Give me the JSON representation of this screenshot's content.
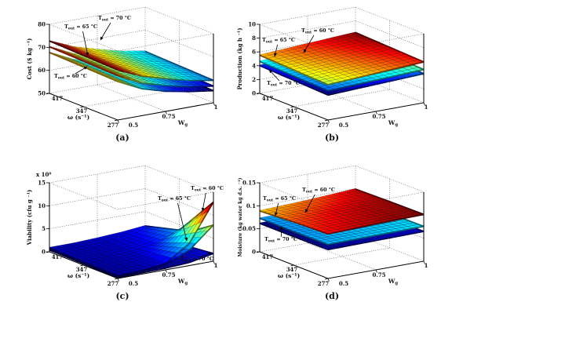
{
  "figure": {
    "captions": {
      "a": "(a)",
      "b": "(b)",
      "c": "(c)",
      "d": "(d)"
    }
  },
  "chart_data": [
    {
      "id": "a",
      "type": "surface",
      "caption": "(a)",
      "grid": true,
      "xlabel": {
        "main": "W",
        "sub": "g"
      },
      "ylabel": "ω (s⁻¹)",
      "zlabel": "Cost ($  kg ⁻¹)",
      "x_ticks": [
        "0.5",
        "0.75",
        "1"
      ],
      "y_ticks": [
        "417",
        "347",
        "277"
      ],
      "z_ticks": [
        "50",
        "60",
        "70",
        "80"
      ],
      "x_range": [
        0.5,
        1
      ],
      "y_range": [
        417,
        277
      ],
      "z_range": [
        50,
        80
      ],
      "series": [
        {
          "name": {
            "main": "T",
            "sub": "out",
            "rest": "= 60 °C"
          },
          "z": [
            [
              68,
              63,
              60,
              58,
              56.5
            ],
            [
              67.5,
              62.5,
              59.5,
              57.5,
              56
            ],
            [
              67,
              62,
              59,
              57,
              55.5
            ]
          ]
        },
        {
          "name": {
            "main": "T",
            "sub": "out",
            "rest": "= 65 °C"
          },
          "z": [
            [
              70.5,
              65.5,
              62.5,
              60,
              58.5
            ],
            [
              70,
              65,
              62,
              59.5,
              58
            ],
            [
              69.5,
              64.5,
              61.5,
              59,
              57.5
            ]
          ]
        },
        {
          "name": {
            "main": "T",
            "sub": "out",
            "rest": "= 70 °C"
          },
          "z": [
            [
              73,
              68.5,
              65.5,
              62.8,
              61
            ],
            [
              72.5,
              68,
              65,
              62.3,
              60.5
            ],
            [
              72,
              67.5,
              64.5,
              61.8,
              60
            ]
          ]
        }
      ],
      "annotations": [
        {
          "main": "T",
          "sub": "out",
          "rest": "= 65 °C"
        },
        {
          "main": "T",
          "sub": "out",
          "rest": "= 70 °C"
        },
        {
          "main": "T",
          "sub": "out",
          "rest": "= 60 °C"
        }
      ]
    },
    {
      "id": "b",
      "type": "surface",
      "caption": "(b)",
      "grid": true,
      "xlabel": {
        "main": "W",
        "sub": "g"
      },
      "ylabel": "ω (s⁻¹)",
      "zlabel": "Production (kg h ⁻¹)",
      "x_ticks": [
        "0.5",
        "0.75",
        "1"
      ],
      "y_ticks": [
        "417",
        "347",
        "277"
      ],
      "z_ticks": [
        "0",
        "2",
        "4",
        "6",
        "8",
        "10"
      ],
      "x_range": [
        0.5,
        1
      ],
      "y_range": [
        417,
        277
      ],
      "z_range": [
        0,
        10
      ],
      "series": [
        {
          "name": {
            "main": "T",
            "sub": "out",
            "rest": "= 70 °C"
          },
          "z": [
            [
              4.1,
              4.4,
              4.7
            ],
            [
              3.9,
              4.2,
              4.5
            ],
            [
              3.7,
              4.0,
              4.3
            ]
          ]
        },
        {
          "name": {
            "main": "T",
            "sub": "out",
            "rest": "= 65 °C"
          },
          "z": [
            [
              4.7,
              5.0,
              5.3
            ],
            [
              4.5,
              4.8,
              5.1
            ],
            [
              4.3,
              4.6,
              4.9
            ]
          ]
        },
        {
          "name": {
            "main": "T",
            "sub": "out",
            "rest": "= 60 °C"
          },
          "z": [
            [
              5.6,
              6.0,
              6.4
            ],
            [
              5.4,
              5.8,
              6.2
            ],
            [
              5.2,
              5.6,
              6.0
            ]
          ]
        }
      ],
      "annotations": [
        {
          "main": "T",
          "sub": "out",
          "rest": "= 60 °C"
        },
        {
          "main": "T",
          "sub": "out",
          "rest": "= 65 °C"
        },
        {
          "main": "T",
          "sub": "out",
          "rest": "= 70 °C"
        }
      ]
    },
    {
      "id": "c",
      "type": "surface",
      "caption": "(c)",
      "grid": true,
      "xlabel": {
        "main": "W",
        "sub": "g"
      },
      "ylabel": "ω (s⁻¹)",
      "zlabel": "Viability (cfu g ⁻¹)",
      "zexp": "x 10⁸",
      "x_ticks": [
        "0.5",
        "0.75",
        "1"
      ],
      "y_ticks": [
        "417",
        "347",
        "277"
      ],
      "z_ticks": [
        "0",
        "5",
        "10",
        "15"
      ],
      "x_range": [
        0.5,
        1
      ],
      "y_range": [
        417,
        277
      ],
      "z_range": [
        0,
        15
      ],
      "series": [
        {
          "name": {
            "main": "T",
            "sub": "out",
            "rest": "= 70 °C"
          },
          "z": [
            [
              0.5,
              0.5,
              0.6,
              0.7,
              0.8
            ],
            [
              0.4,
              0.4,
              0.5,
              0.7,
              1.0
            ],
            [
              0.3,
              0.4,
              0.5,
              0.8,
              1.8
            ]
          ]
        },
        {
          "name": {
            "main": "T",
            "sub": "out",
            "rest": "= 65 °C"
          },
          "z": [
            [
              0.8,
              0.8,
              1.0,
              1.2,
              1.5
            ],
            [
              0.6,
              0.7,
              0.9,
              1.5,
              3.0
            ],
            [
              0.5,
              0.7,
              1.2,
              3.5,
              8.0
            ]
          ]
        },
        {
          "name": {
            "main": "T",
            "sub": "out",
            "rest": "= 60 °C"
          },
          "z": [
            [
              1.0,
              1.0,
              1.2,
              1.5,
              2.0
            ],
            [
              0.8,
              0.9,
              1.2,
              2.0,
              4.0
            ],
            [
              0.7,
              0.9,
              1.5,
              5.0,
              13.0
            ]
          ]
        }
      ],
      "annotations": [
        {
          "main": "T",
          "sub": "out",
          "rest": "= 60 °C"
        },
        {
          "main": "T",
          "sub": "out",
          "rest": "= 65 °C"
        },
        {
          "main": "T",
          "sub": "out",
          "rest": "= 70 °C"
        }
      ]
    },
    {
      "id": "d",
      "type": "surface",
      "caption": "(d)",
      "grid": true,
      "xlabel": {
        "main": "W",
        "sub": "g"
      },
      "ylabel": "ω (s⁻¹)",
      "zlabel": "Moisture (kg water kg d.s. ⁻¹)",
      "x_ticks": [
        "0.5",
        "0.75",
        "1"
      ],
      "y_ticks": [
        "417",
        "347",
        "277"
      ],
      "z_ticks": [
        "0",
        "0.05",
        "0.1",
        "0.15"
      ],
      "x_range": [
        0.5,
        1
      ],
      "y_range": [
        417,
        277
      ],
      "z_range": [
        0,
        0.15
      ],
      "series": [
        {
          "name": {
            "main": "T",
            "sub": "out",
            "rest": "= 70 °C"
          },
          "z": [
            [
              0.063,
              0.064,
              0.065
            ],
            [
              0.063,
              0.064,
              0.065
            ],
            [
              0.064,
              0.065,
              0.066
            ]
          ]
        },
        {
          "name": {
            "main": "T",
            "sub": "out",
            "rest": "= 65 °C"
          },
          "z": [
            [
              0.074,
              0.075,
              0.076
            ],
            [
              0.074,
              0.075,
              0.076
            ],
            [
              0.075,
              0.076,
              0.077
            ]
          ]
        },
        {
          "name": {
            "main": "T",
            "sub": "out",
            "rest": "= 60 °C"
          },
          "z": [
            [
              0.09,
              0.094,
              0.1
            ],
            [
              0.095,
              0.099,
              0.102
            ],
            [
              0.098,
              0.101,
              0.103
            ]
          ]
        }
      ],
      "annotations": [
        {
          "main": "T",
          "sub": "out",
          "rest": "= 60 °C"
        },
        {
          "main": "T",
          "sub": "out",
          "rest": "= 65 °C"
        },
        {
          "main": "T",
          "sub": "out",
          "rest": "= 70 °C"
        }
      ]
    }
  ]
}
